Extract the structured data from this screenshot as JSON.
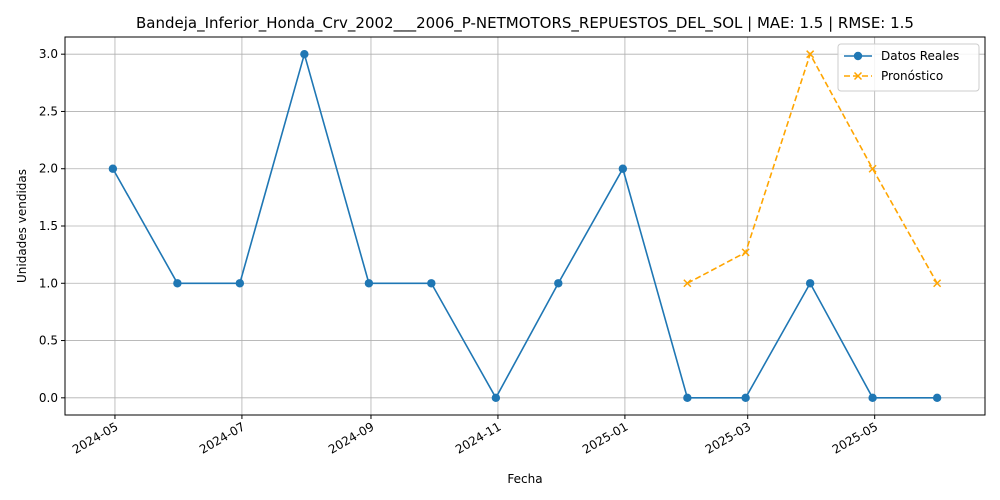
{
  "chart_data": {
    "type": "line",
    "title": "Bandeja_Inferior_Honda_Crv_2002___2006_P-NETMOTORS_REPUESTOS_DEL_SOL | MAE: 1.5 | RMSE: 1.5",
    "xlabel": "Fecha",
    "ylabel": "Unidades vendidas",
    "ylim": [
      -0.15,
      3.15
    ],
    "xlim": [
      "2024-04-07",
      "2025-06-23"
    ],
    "x_ticks": [
      "2024-05",
      "2024-07",
      "2024-09",
      "2024-11",
      "2025-01",
      "2025-03",
      "2025-05"
    ],
    "y_ticks": [
      "0.0",
      "0.5",
      "1.0",
      "1.5",
      "2.0",
      "2.5",
      "3.0"
    ],
    "grid": true,
    "legend_position": "top-right",
    "series": [
      {
        "name": "Datos Reales",
        "color": "#1f77b4",
        "line_style": "solid",
        "marker": "circle",
        "x": [
          "2024-04-30",
          "2024-05-31",
          "2024-06-30",
          "2024-07-31",
          "2024-08-31",
          "2024-09-30",
          "2024-10-31",
          "2024-11-30",
          "2024-12-31",
          "2025-01-31",
          "2025-02-28",
          "2025-03-31",
          "2025-04-30",
          "2025-05-31"
        ],
        "values": [
          2,
          1,
          1,
          3,
          1,
          1,
          0,
          1,
          2,
          0,
          0,
          1,
          0,
          0
        ]
      },
      {
        "name": "Pronóstico",
        "color": "#ffa500",
        "line_style": "dashed",
        "marker": "x",
        "x": [
          "2025-01-31",
          "2025-02-28",
          "2025-03-31",
          "2025-04-30",
          "2025-05-31"
        ],
        "values": [
          1.0,
          1.27,
          3.0,
          2.0,
          1.0
        ]
      }
    ]
  }
}
